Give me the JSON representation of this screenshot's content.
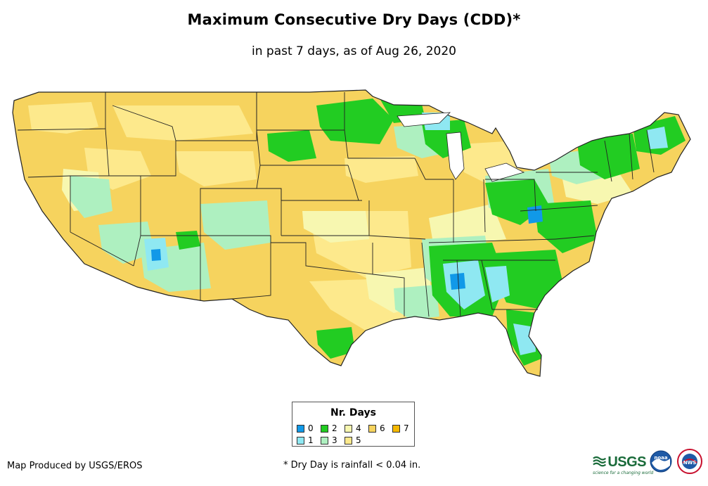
{
  "header": {
    "title": "Maximum Consecutive Dry Days (CDD)*",
    "subtitle": "in past 7 days, as of Aug 26, 2020"
  },
  "legend": {
    "title": "Nr. Days",
    "items": [
      {
        "label": "0",
        "color": "#1199e8"
      },
      {
        "label": "1",
        "color": "#8fe8f2"
      },
      {
        "label": "2",
        "color": "#22cc22"
      },
      {
        "label": "3",
        "color": "#aef0c0"
      },
      {
        "label": "4",
        "color": "#f7f7b0"
      },
      {
        "label": "5",
        "color": "#fde98c"
      },
      {
        "label": "6",
        "color": "#f6d35e"
      },
      {
        "label": "7",
        "color": "#f5b800"
      }
    ]
  },
  "footer": {
    "credit": "Map Produced by USGS/EROS",
    "footnote": "* Dry Day is rainfall < 0.04 in.",
    "usgs_logo_text": "USGS",
    "usgs_tagline": "science for a changing world",
    "noaa_logo_text": "noaa",
    "nws_logo_text": "NWS"
  },
  "colors": {
    "state_border": "#222222",
    "base_fill": "#f6d35e"
  }
}
